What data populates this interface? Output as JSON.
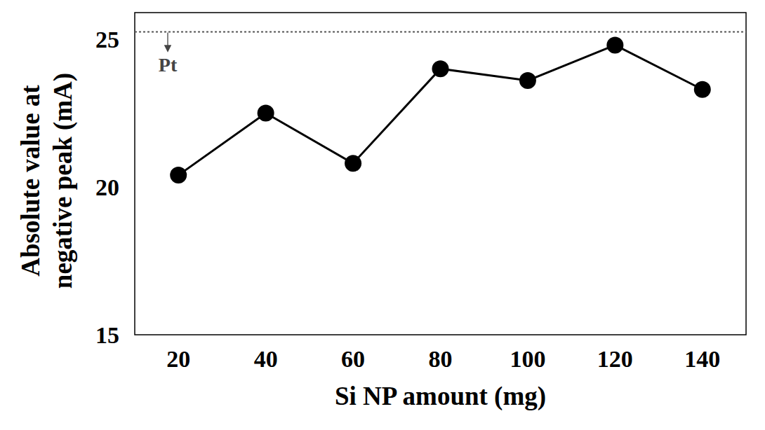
{
  "chart_data": {
    "type": "line",
    "x_label": "Si NP amount (mg)",
    "y_label": [
      "Absolute value at",
      "negative peak (mA)"
    ],
    "x": [
      20,
      40,
      60,
      80,
      100,
      120,
      140
    ],
    "values": [
      20.4,
      22.5,
      20.8,
      24.0,
      23.6,
      24.8,
      23.3
    ],
    "color": "#000000",
    "marker": "circle",
    "line_style": "solid",
    "xlim": [
      10,
      150
    ],
    "xticks": [
      20,
      40,
      60,
      80,
      100,
      120,
      140
    ],
    "ylim": [
      15,
      25.9
    ],
    "yticks": [
      15,
      20,
      25
    ],
    "grid": false,
    "reference_line": {
      "label": "Pt",
      "value": 25.25
    }
  }
}
